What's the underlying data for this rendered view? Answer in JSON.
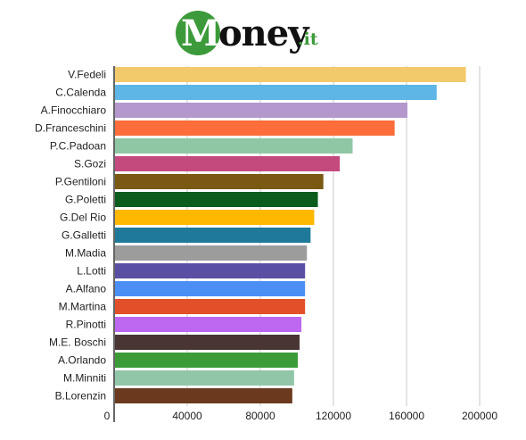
{
  "logo": {
    "initial": "M",
    "word": "oney",
    "tld": ".it"
  },
  "chart_data": {
    "type": "bar",
    "orientation": "horizontal",
    "categories": [
      "V.Fedeli",
      "C.Calenda",
      "A.Finocchiaro",
      "D.Franceschini",
      "P.C.Padoan",
      "S.Gozi",
      "P.Gentiloni",
      "G.Poletti",
      "G.Del Rio",
      "G.Galletti",
      "M.Madia",
      "L.Lotti",
      "A.Alfano",
      "M.Martina",
      "R.Pinotti",
      "M.E. Boschi",
      "A.Orlando",
      "M.Minniti",
      "B.Lorenzin"
    ],
    "values": [
      192000,
      176000,
      160000,
      153000,
      130000,
      123000,
      114000,
      111000,
      109000,
      107000,
      105000,
      104000,
      104000,
      104000,
      102000,
      101000,
      100000,
      98000,
      97000
    ],
    "colors": [
      "#f2c96b",
      "#5db6e6",
      "#b497cc",
      "#ff6d3a",
      "#8fc7a4",
      "#c44a7e",
      "#7a5a12",
      "#0b5d1e",
      "#ffb800",
      "#1f7a99",
      "#9c9c9c",
      "#5a50a3",
      "#4b8ff5",
      "#e2502a",
      "#bc68f0",
      "#4a3535",
      "#3b9c37",
      "#91c6a9",
      "#6b3a1e"
    ],
    "xlim": [
      0,
      220000
    ],
    "xticks": [
      0,
      40000,
      80000,
      120000,
      160000,
      200000
    ],
    "xtick_labels": [
      "0",
      "40000",
      "80000",
      "120000",
      "160000",
      "200000"
    ],
    "grid": true,
    "title": "",
    "xlabel": "",
    "ylabel": ""
  }
}
